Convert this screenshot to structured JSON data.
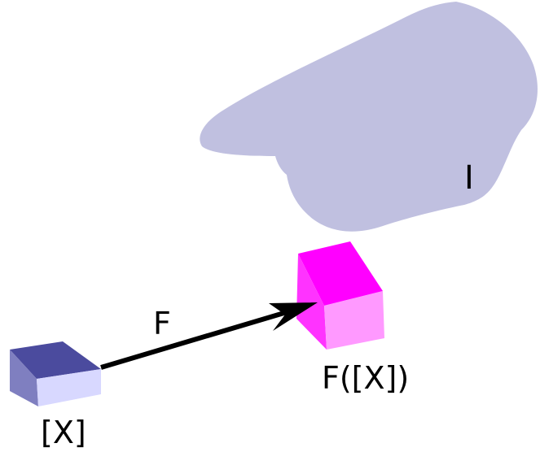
{
  "diagram": {
    "labels": {
      "region": "I",
      "arrow": "F",
      "source": "[X]",
      "target": "F([X])"
    },
    "colors": {
      "region_fill": "#c0c0e0",
      "source_top": "#4b4b9e",
      "source_front": "#d8d8ff",
      "source_side": "#7f7fc0",
      "target_top": "#ff00ff",
      "target_front": "#ff99ff",
      "target_side": "#ff33ff",
      "arrow": "#000000"
    }
  }
}
